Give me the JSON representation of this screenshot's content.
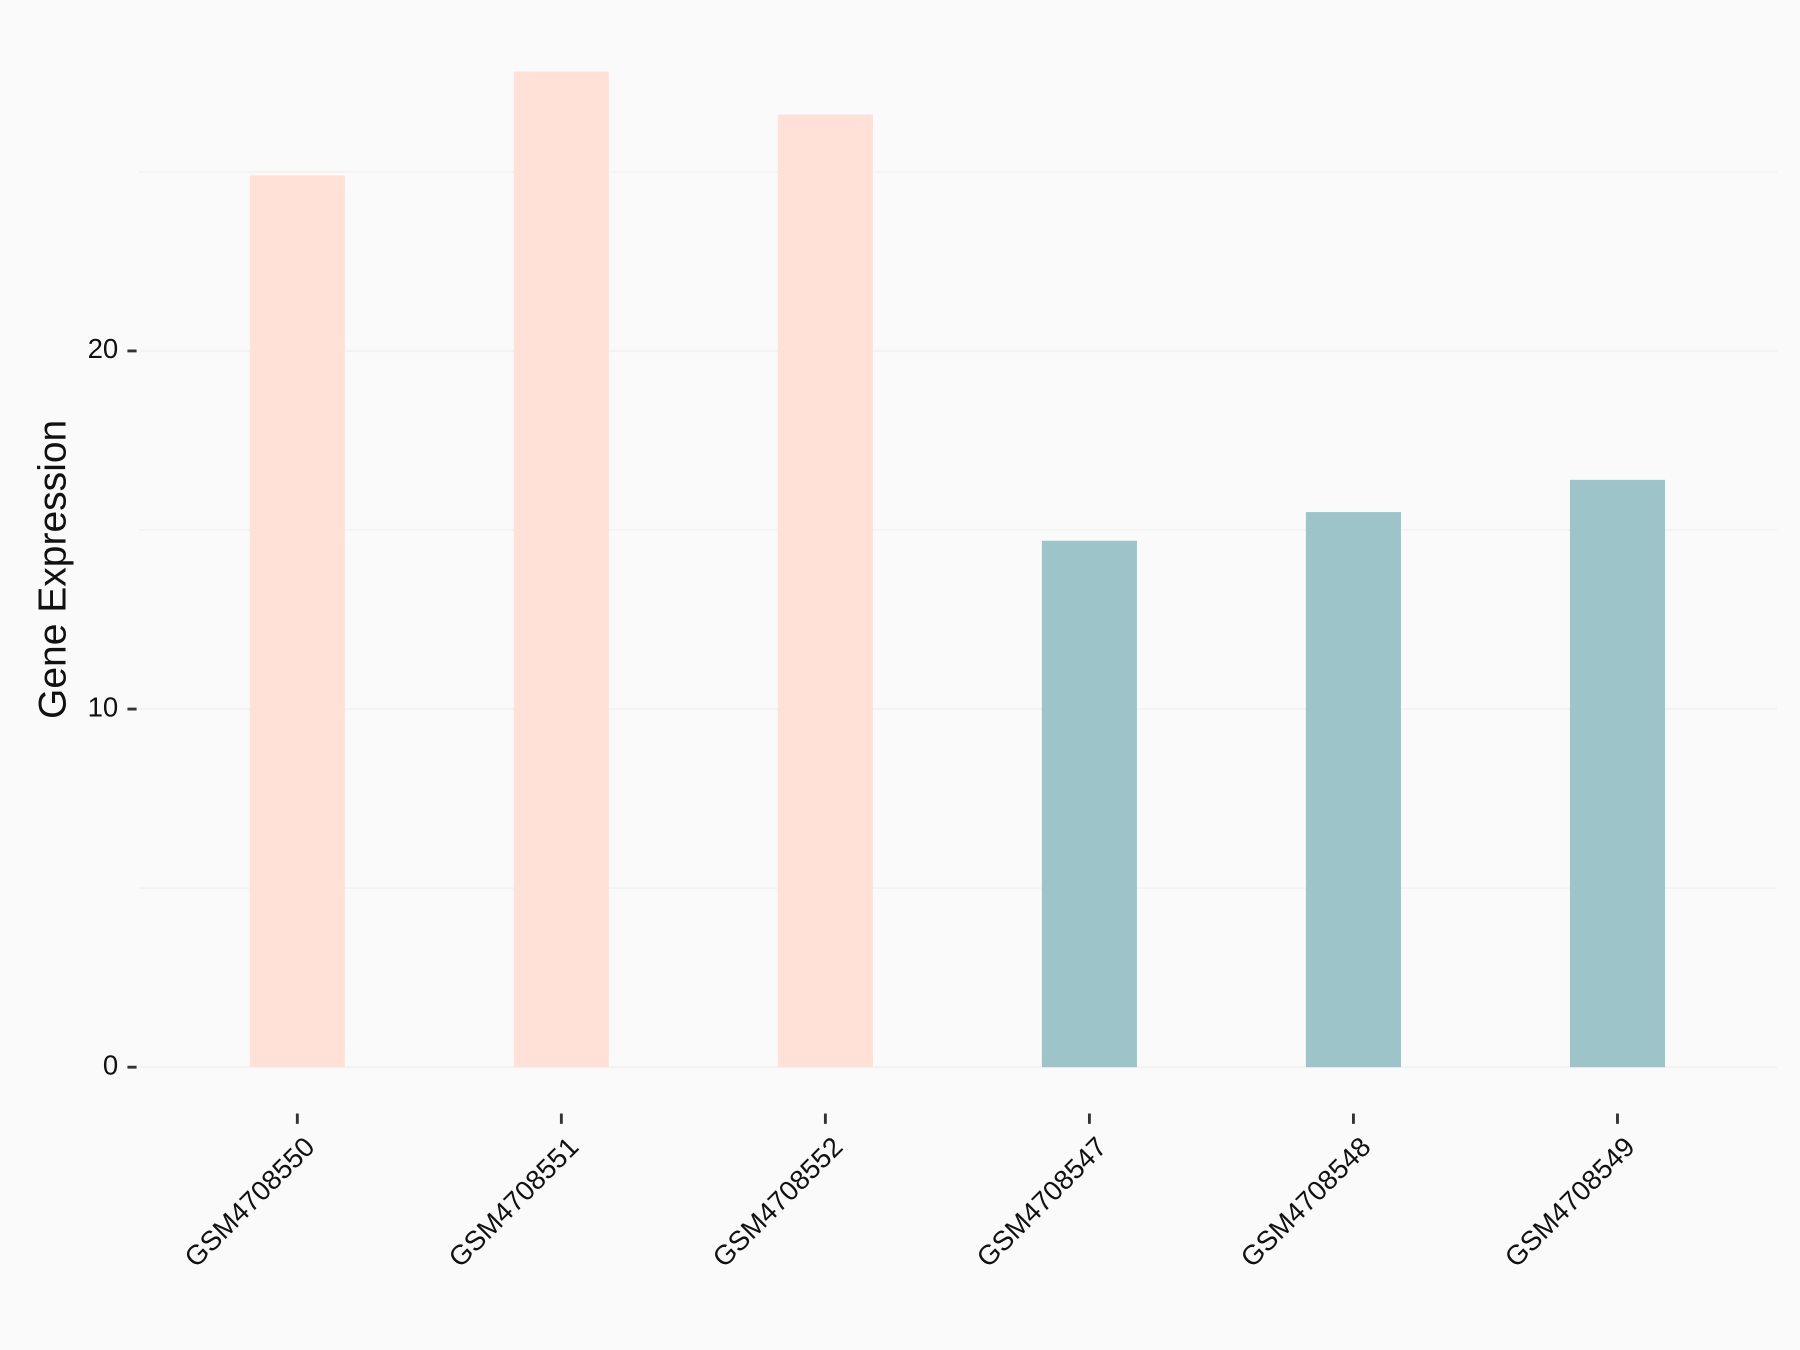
{
  "chart_data": {
    "type": "bar",
    "y_label": "Gene Expression",
    "categories": [
      "GSM4708550",
      "GSM4708551",
      "GSM4708552",
      "GSM4708547",
      "GSM4708548",
      "GSM4708549"
    ],
    "values": [
      24.9,
      27.8,
      26.6,
      14.7,
      15.5,
      16.4
    ],
    "colors": [
      "#ffe1d7",
      "#ffe1d7",
      "#ffe1d7",
      "#9dc4c8",
      "#9dc4c8",
      "#9dc4c8"
    ],
    "ylim": [
      -1.39,
      29.19
    ],
    "yticks": [
      0,
      10,
      20
    ],
    "yminorticks": [
      5,
      15,
      25
    ],
    "grid": true
  }
}
